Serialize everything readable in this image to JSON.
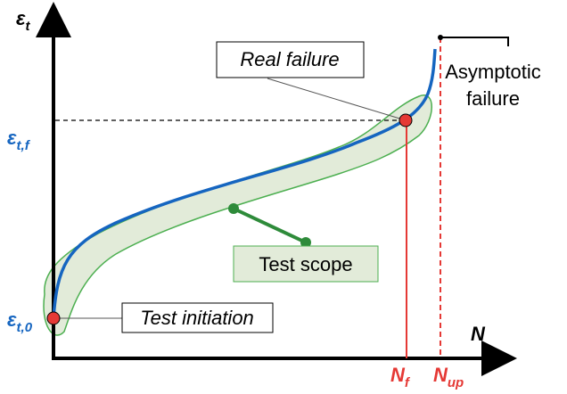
{
  "y_axis": {
    "label": {
      "symbol": "ε",
      "sub": "t"
    },
    "ticks": [
      {
        "symbol": "ε",
        "sub": "t,f"
      },
      {
        "symbol": "ε",
        "sub": "t,0"
      }
    ]
  },
  "x_axis": {
    "label": "N",
    "ticks": [
      {
        "symbol": "N",
        "sub": "f"
      },
      {
        "symbol": "N",
        "sub": "up"
      }
    ]
  },
  "annotations": {
    "real_failure": "Real failure",
    "asymptotic_failure": [
      "Asymptotic",
      "failure"
    ],
    "test_scope": "Test scope",
    "test_initiation": "Test initiation"
  }
}
